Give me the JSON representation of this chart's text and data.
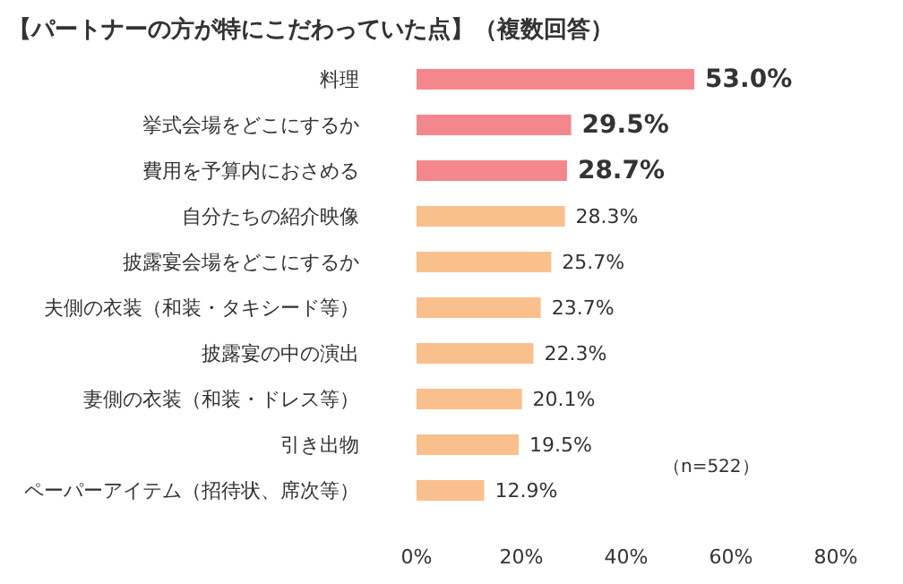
{
  "chart_data": {
    "type": "bar",
    "orientation": "horizontal",
    "title": "【パートナーの方が特にこだわっていた点】（複数回答）",
    "categories": [
      "料理",
      "挙式会場をどこにするか",
      "費用を予算内におさめる",
      "自分たちの紹介映像",
      "披露宴会場をどこにするか",
      "夫側の衣装（和装・タキシード等）",
      "披露宴の中の演出",
      "妻側の衣装（和装・ドレス等）",
      "引き出物",
      "ペーパーアイテム（招待状、席次等）"
    ],
    "values": [
      53.0,
      29.5,
      28.7,
      28.3,
      25.7,
      23.7,
      22.3,
      20.1,
      19.5,
      12.9
    ],
    "colors": [
      "#f4878d",
      "#f4878d",
      "#f4878d",
      "#f9c08e",
      "#f9c08e",
      "#f9c08e",
      "#f9c08e",
      "#f9c08e",
      "#f9c08e",
      "#f9c08e"
    ],
    "value_labels": [
      "53.0%",
      "29.5%",
      "28.7%",
      "28.3%",
      "25.7%",
      "23.7%",
      "22.3%",
      "20.1%",
      "19.5%",
      "12.9%"
    ],
    "xlim": [
      0,
      80
    ],
    "xticks": [
      {
        "value": 0,
        "label": "0%"
      },
      {
        "value": 20,
        "label": "20%"
      },
      {
        "value": 40,
        "label": "40%"
      },
      {
        "value": 60,
        "label": "60%"
      },
      {
        "value": 80,
        "label": "80%"
      }
    ],
    "annotations": [
      "（n=522）"
    ],
    "grid": false
  }
}
